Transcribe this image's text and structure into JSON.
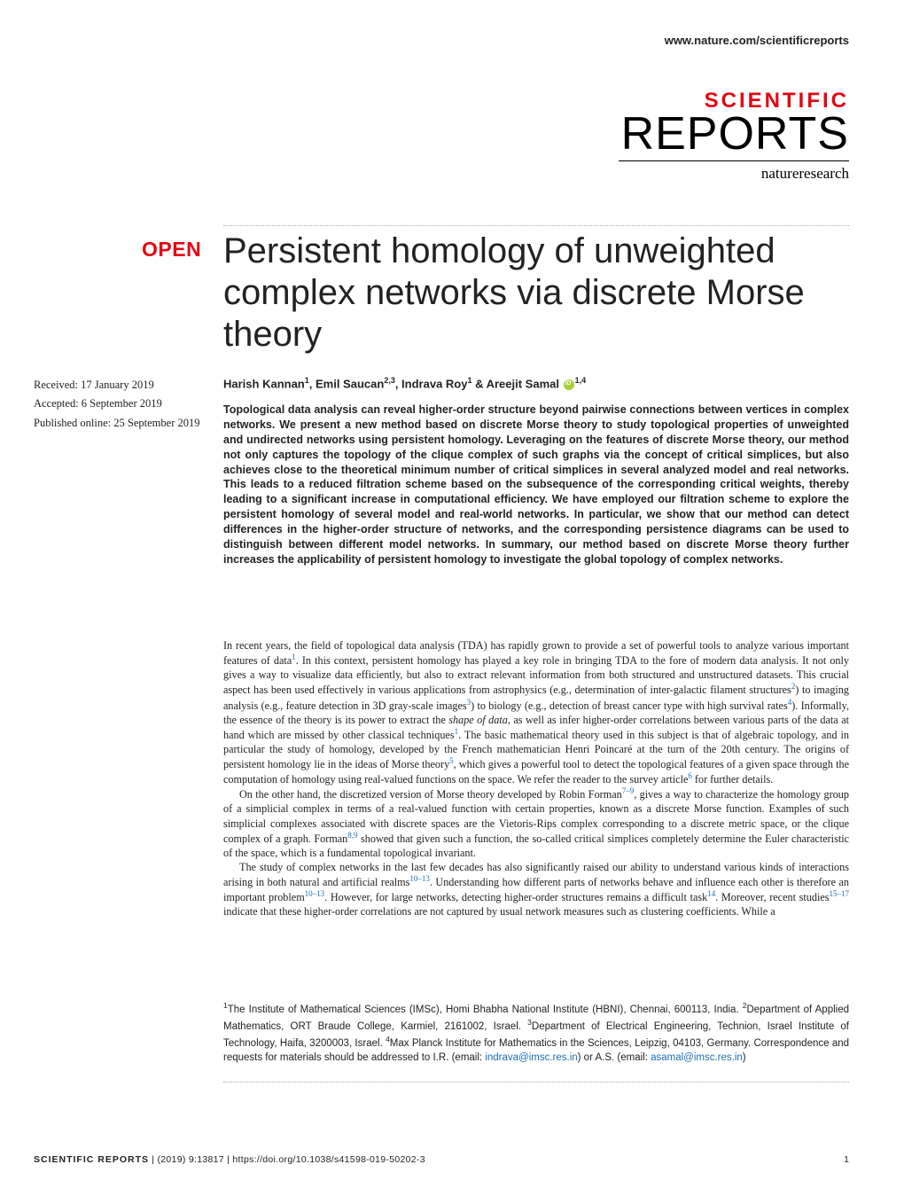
{
  "header": {
    "url": "www.nature.com/scientificreports",
    "logo_top": "SCIENTIFIC",
    "logo_bottom": "REPORTS",
    "logo_sub": "natureresearch"
  },
  "badge": "OPEN",
  "title": "Persistent homology of unweighted complex networks via discrete Morse theory",
  "dates": {
    "received": "Received: 17 January 2019",
    "accepted": "Accepted: 6 September 2019",
    "published": "Published online: 25 September 2019"
  },
  "authors_html": "Harish Kannan<sup>1</sup>, Emil Saucan<sup>2,3</sup>, Indrava Roy<sup>1</sup> & Areejit Samal <span class='orcid'></span><sup>1,4</sup>",
  "abstract": "Topological data analysis can reveal higher-order structure beyond pairwise connections between vertices in complex networks. We present a new method based on discrete Morse theory to study topological properties of unweighted and undirected networks using persistent homology. Leveraging on the features of discrete Morse theory, our method not only captures the topology of the clique complex of such graphs via the concept of critical simplices, but also achieves close to the theoretical minimum number of critical simplices in several analyzed model and real networks. This leads to a reduced filtration scheme based on the subsequence of the corresponding critical weights, thereby leading to a significant increase in computational efficiency. We have employed our filtration scheme to explore the persistent homology of several model and real-world networks. In particular, we show that our method can detect differences in the higher-order structure of networks, and the corresponding persistence diagrams can be used to distinguish between different model networks. In summary, our method based on discrete Morse theory further increases the applicability of persistent homology to investigate the global topology of complex networks.",
  "body": {
    "p1": "In recent years, the field of topological data analysis (TDA) has rapidly grown to provide a set of powerful tools to analyze various important features of data<span class='ref-link'>1</span>. In this context, persistent homology has played a key role in bringing TDA to the fore of modern data analysis. It not only gives a way to visualize data efficiently, but also to extract relevant information from both structured and unstructured datasets. This crucial aspect has been used effectively in various applications from astrophysics (e.g., determination of inter-galactic filament structures<span class='ref-link'>2</span>) to imaging analysis (e.g., feature detection in 3D gray-scale images<span class='ref-link'>3</span>) to biology (e.g., detection of breast cancer type with high survival rates<span class='ref-link'>4</span>). Informally, the essence of the theory is its power to extract the <i>shape of data</i>, as well as infer higher-order correlations between various parts of the data at hand which are missed by other classical techniques<span class='ref-link'>1</span>. The basic mathematical theory used in this subject is that of algebraic topology, and in particular the study of homology, developed by the French mathematician Henri Poincaré at the turn of the 20th century. The origins of persistent homology lie in the ideas of Morse theory<span class='ref-link'>5</span>, which gives a powerful tool to detect the topological features of a given space through the computation of homology using real-valued functions on the space. We refer the reader to the survey article<span class='ref-link'>6</span> for further details.",
    "p2": "On the other hand, the discretized version of Morse theory developed by Robin Forman<span class='ref-link'>7–9</span>, gives a way to characterize the homology group of a simplicial complex in terms of a real-valued function with certain properties, known as a discrete Morse function. Examples of such simplicial complexes associated with discrete spaces are the Vietoris-Rips complex corresponding to a discrete metric space, or the clique complex of a graph. Forman<span class='ref-link'>8,9</span> showed that given such a function, the so-called critical simplices completely determine the Euler characteristic of the space, which is a fundamental topological invariant.",
    "p3": "The study of complex networks in the last few decades has also significantly raised our ability to understand various kinds of interactions arising in both natural and artificial realms<span class='ref-link'>10–13</span>. Understanding how different parts of networks behave and influence each other is therefore an important problem<span class='ref-link'>10–13</span>. However, for large networks, detecting higher-order structures remains a difficult task<span class='ref-link'>14</span>. Moreover, recent studies<span class='ref-link'>15–17</span> indicate that these higher-order correlations are not captured by usual network measures such as clustering coefficients. While a"
  },
  "affiliations_html": "<sup>1</sup>The Institute of Mathematical Sciences (IMSc), Homi Bhabha National Institute (HBNI), Chennai, 600113, India. <sup>2</sup>Department of Applied Mathematics, ORT Braude College, Karmiel, 2161002, Israel. <sup>3</sup>Department of Electrical Engineering, Technion, Israel Institute of Technology, Haifa, 3200003, Israel. <sup>4</sup>Max Planck Institute for Mathematics in the Sciences, Leipzig, 04103, Germany. Correspondence and requests for materials should be addressed to I.R. (email: <span class='email-link'>indrava@imsc.res.in</span>) or A.S. (email: <span class='email-link'>asamal@imsc.res.in</span>)",
  "footer": {
    "journal": "SCIENTIFIC REPORTS",
    "citation": "|         (2019) 9:13817  | https://doi.org/10.1038/s41598-019-50202-3",
    "page": "1"
  },
  "colors": {
    "accent_red": "#e30613",
    "link_blue": "#1a6fb5",
    "orcid_green": "#a6ce39"
  }
}
